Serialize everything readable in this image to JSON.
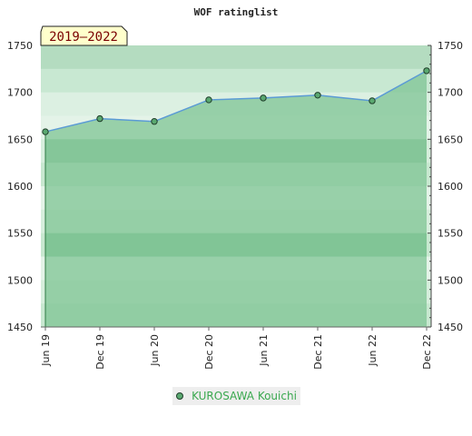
{
  "chart_data": {
    "type": "area",
    "title": "WOF ratinglist",
    "period_label": "2019–2022",
    "x": [
      "Jun 19",
      "Dec 19",
      "Jun 20",
      "Dec 20",
      "Jun 21",
      "Dec 21",
      "Jun 22",
      "Dec 22"
    ],
    "series": [
      {
        "name": "KUROSAWA Kouichi",
        "values": [
          1658,
          1672,
          1669,
          1692,
          1694,
          1697,
          1691,
          1723
        ]
      }
    ],
    "ylim": [
      1450,
      1750
    ],
    "y_ticks": [
      1450,
      1500,
      1550,
      1600,
      1650,
      1700,
      1750
    ],
    "y_axis": "both sides",
    "legend_position": "bottom",
    "colors": {
      "line": "#5b9bd5",
      "fill": "#7fc494",
      "marker": "#5aa870",
      "marker_edge": "#1f3d2a",
      "legend_text": "#3aa84f",
      "badge_bg": "#ffffcc"
    }
  }
}
